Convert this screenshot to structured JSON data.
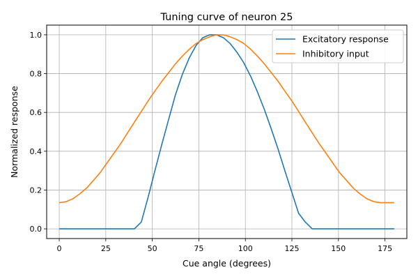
{
  "chart_data": {
    "type": "line",
    "title": "Tuning curve of neuron 25",
    "xlabel": "Cue angle (degrees)",
    "ylabel": "Normalized response",
    "xlim": [
      -6.75,
      186.75
    ],
    "ylim": [
      -0.05,
      1.05
    ],
    "xticks": [
      0,
      25,
      50,
      75,
      100,
      125,
      150,
      175
    ],
    "yticks": [
      0.0,
      0.2,
      0.4,
      0.6,
      0.8,
      1.0
    ],
    "xtick_labels": [
      "0",
      "25",
      "50",
      "75",
      "100",
      "125",
      "150",
      "175"
    ],
    "ytick_labels": [
      "0.0",
      "0.2",
      "0.4",
      "0.6",
      "0.8",
      "1.0"
    ],
    "grid": true,
    "legend_position": "top-right",
    "x": [
      0,
      3.7,
      7.3,
      11,
      14.7,
      18.4,
      22,
      25.7,
      29.4,
      33.1,
      36.7,
      40.4,
      44.1,
      47.8,
      51.4,
      55.1,
      58.8,
      62.4,
      66.1,
      69.8,
      73.5,
      77.1,
      80.8,
      84.5,
      88.2,
      91.8,
      95.5,
      99.2,
      102.9,
      106.5,
      110.2,
      113.9,
      117.6,
      121.2,
      124.9,
      128.6,
      132.2,
      135.9,
      139.6,
      143.3,
      146.9,
      150.6,
      154.3,
      158,
      161.6,
      165.3,
      169,
      172.7,
      176.3,
      180
    ],
    "series": [
      {
        "name": "Excitatory response",
        "color": "#1f77b4",
        "values": [
          0,
          0,
          0,
          0,
          0,
          0,
          0,
          0,
          0,
          0,
          0,
          0,
          0.035,
          0.165,
          0.3,
          0.435,
          0.565,
          0.69,
          0.795,
          0.88,
          0.945,
          0.985,
          1.0,
          1.0,
          0.985,
          0.955,
          0.91,
          0.855,
          0.785,
          0.705,
          0.615,
          0.515,
          0.41,
          0.3,
          0.19,
          0.08,
          0.035,
          0,
          0,
          0,
          0,
          0,
          0,
          0,
          0,
          0,
          0,
          0,
          0,
          0
        ]
      },
      {
        "name": "Inhibitory input",
        "color": "#ff7f0e",
        "values": [
          0.135,
          0.14,
          0.155,
          0.18,
          0.21,
          0.25,
          0.29,
          0.34,
          0.39,
          0.44,
          0.495,
          0.55,
          0.605,
          0.66,
          0.71,
          0.76,
          0.805,
          0.85,
          0.89,
          0.925,
          0.955,
          0.975,
          0.99,
          1.0,
          1.0,
          0.99,
          0.975,
          0.955,
          0.925,
          0.89,
          0.85,
          0.805,
          0.76,
          0.71,
          0.66,
          0.605,
          0.55,
          0.495,
          0.44,
          0.39,
          0.34,
          0.29,
          0.25,
          0.21,
          0.18,
          0.155,
          0.14,
          0.135,
          0.135,
          0.135
        ]
      }
    ]
  }
}
